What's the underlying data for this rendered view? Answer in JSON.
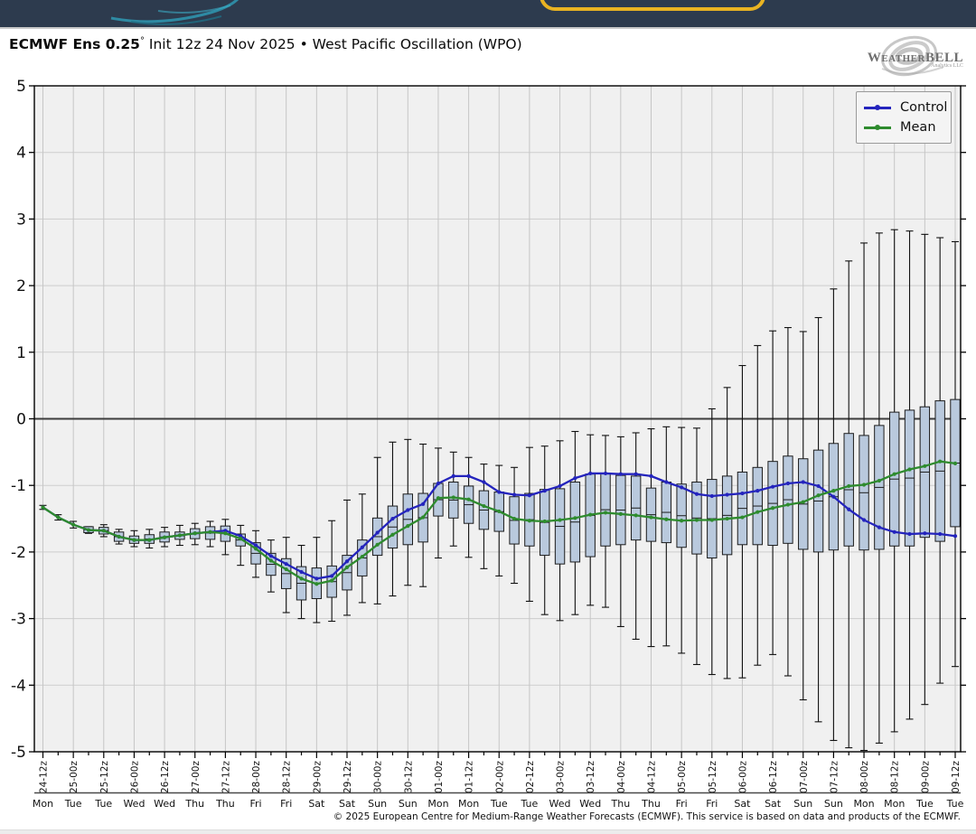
{
  "header": {
    "title_bold": "ECMWF Ens 0.25",
    "title_degree": "°",
    "title_rest": " Init 12z 24 Nov 2025 • West Pacific Oscillation (WPO)",
    "logo_text": "WeatherBELL",
    "logo_sub": "Analytics LLC"
  },
  "legend": {
    "control_label": "Control",
    "mean_label": "Mean"
  },
  "footer": {
    "copyright": "© 2025 European Centre for Medium-Range Weather Forecasts (ECMWF). This service is based on data and products of the ECMWF."
  },
  "colors": {
    "control": "#2424bd",
    "mean": "#2e8b2e",
    "box_fill": "#b9c9dd",
    "box_edge": "#1c1c1c",
    "whisker": "#111111",
    "plot_bg": "#f0f0f0",
    "grid": "#cdcdcd",
    "vgrid": "#c6c6c6",
    "zero_line": "#3c3c3c",
    "frame": "#000000",
    "topbar": "#2d3b4e",
    "accent_yellow": "#e9b322"
  },
  "chart_data": {
    "type": "box-whisker-timeseries",
    "title": "ECMWF Ens 0.25° Init 12z 24 Nov 2025 • West Pacific Oscillation (WPO)",
    "ylabel": "",
    "xlabel": "",
    "ylim": [
      -5,
      5
    ],
    "yticks": [
      5,
      4,
      3,
      2,
      1,
      0,
      -1,
      -2,
      -3,
      -4,
      -5
    ],
    "grid": true,
    "legend_position": "upper right",
    "points_interval_hours": 6,
    "tick_interval_hours": 12,
    "xticklabels": [
      "24-12z",
      "25-00z",
      "25-12z",
      "26-00z",
      "26-12z",
      "27-00z",
      "27-12z",
      "28-00z",
      "28-12z",
      "29-00z",
      "29-12z",
      "30-00z",
      "30-12z",
      "01-00z",
      "01-12z",
      "02-00z",
      "02-12z",
      "03-00z",
      "03-12z",
      "04-00z",
      "04-12z",
      "05-00z",
      "05-12z",
      "06-00z",
      "06-12z",
      "07-00z",
      "07-12z",
      "08-00z",
      "08-12z",
      "09-00z",
      "09-12z"
    ],
    "day_labels": [
      "Mon",
      "Tue",
      "Tue",
      "Wed",
      "Wed",
      "Thu",
      "Thu",
      "Fri",
      "Fri",
      "Sat",
      "Sat",
      "Sun",
      "Sun",
      "Mon",
      "Mon",
      "Tue",
      "Tue",
      "Wed",
      "Wed",
      "Thu",
      "Thu",
      "Fri",
      "Fri",
      "Sat",
      "Sat",
      "Sun",
      "Sun",
      "Mon",
      "Mon",
      "Tue",
      "Tue"
    ],
    "series": [
      {
        "name": "Control",
        "values": [
          -1.33,
          -1.48,
          -1.59,
          -1.67,
          -1.68,
          -1.77,
          -1.82,
          -1.82,
          -1.78,
          -1.75,
          -1.72,
          -1.7,
          -1.68,
          -1.76,
          -1.9,
          -2.06,
          -2.18,
          -2.3,
          -2.4,
          -2.36,
          -2.14,
          -1.93,
          -1.71,
          -1.5,
          -1.37,
          -1.28,
          -0.97,
          -0.86,
          -0.86,
          -0.95,
          -1.1,
          -1.14,
          -1.15,
          -1.08,
          -1.01,
          -0.89,
          -0.82,
          -0.82,
          -0.83,
          -0.83,
          -0.86,
          -0.95,
          -1.03,
          -1.13,
          -1.16,
          -1.14,
          -1.12,
          -1.08,
          -1.02,
          -0.97,
          -0.95,
          -1.01,
          -1.17,
          -1.36,
          -1.52,
          -1.63,
          -1.7,
          -1.73,
          -1.72,
          -1.73,
          -1.76
        ]
      },
      {
        "name": "Mean",
        "values": [
          -1.33,
          -1.48,
          -1.59,
          -1.67,
          -1.68,
          -1.77,
          -1.82,
          -1.82,
          -1.78,
          -1.75,
          -1.72,
          -1.7,
          -1.72,
          -1.8,
          -1.95,
          -2.13,
          -2.26,
          -2.4,
          -2.48,
          -2.43,
          -2.23,
          -2.07,
          -1.89,
          -1.74,
          -1.61,
          -1.48,
          -1.19,
          -1.18,
          -1.21,
          -1.31,
          -1.39,
          -1.5,
          -1.53,
          -1.54,
          -1.52,
          -1.49,
          -1.44,
          -1.41,
          -1.43,
          -1.45,
          -1.48,
          -1.51,
          -1.53,
          -1.52,
          -1.52,
          -1.5,
          -1.48,
          -1.4,
          -1.34,
          -1.29,
          -1.25,
          -1.15,
          -1.08,
          -1.01,
          -0.99,
          -0.93,
          -0.83,
          -0.76,
          -0.71,
          -0.64,
          -0.67
        ]
      }
    ],
    "box_top": [
      null,
      null,
      null,
      -1.62,
      -1.63,
      -1.7,
      -1.76,
      -1.74,
      -1.7,
      -1.7,
      -1.65,
      -1.62,
      -1.61,
      -1.73,
      -1.86,
      -2.02,
      -2.1,
      -2.22,
      -2.24,
      -2.21,
      -2.05,
      -1.82,
      -1.49,
      -1.31,
      -1.13,
      -1.12,
      -0.97,
      -0.95,
      -1.01,
      -1.08,
      -1.1,
      -1.17,
      -1.12,
      -1.06,
      -1.05,
      -0.95,
      -0.83,
      -0.82,
      -0.85,
      -0.86,
      -1.04,
      -0.95,
      -0.98,
      -0.95,
      -0.91,
      -0.86,
      -0.8,
      -0.73,
      -0.64,
      -0.56,
      -0.6,
      -0.47,
      -0.37,
      -0.22,
      -0.25,
      -0.1,
      0.1,
      0.13,
      0.18,
      0.27,
      0.29
    ],
    "box_bottom": [
      null,
      null,
      null,
      -1.71,
      -1.73,
      -1.84,
      -1.87,
      -1.87,
      -1.85,
      -1.81,
      -1.8,
      -1.81,
      -1.84,
      -1.91,
      -2.18,
      -2.35,
      -2.55,
      -2.72,
      -2.7,
      -2.68,
      -2.57,
      -2.36,
      -2.05,
      -1.94,
      -1.89,
      -1.85,
      -1.46,
      -1.49,
      -1.57,
      -1.66,
      -1.69,
      -1.88,
      -1.91,
      -2.05,
      -2.18,
      -2.15,
      -2.07,
      -1.91,
      -1.89,
      -1.82,
      -1.84,
      -1.86,
      -1.93,
      -2.03,
      -2.09,
      -2.04,
      -1.89,
      -1.89,
      -1.9,
      -1.87,
      -1.96,
      -2.0,
      -1.97,
      -1.91,
      -1.97,
      -1.96,
      -1.91,
      -1.91,
      -1.78,
      -1.84,
      -1.62
    ],
    "whisker_top": [
      -1.3,
      -1.44,
      -1.54,
      -1.62,
      -1.59,
      -1.66,
      -1.68,
      -1.66,
      -1.63,
      -1.6,
      -1.57,
      -1.54,
      -1.51,
      -1.6,
      -1.68,
      -1.82,
      -1.78,
      -1.9,
      -1.78,
      -1.53,
      -1.22,
      -1.13,
      -0.58,
      -0.35,
      -0.31,
      -0.38,
      -0.44,
      -0.5,
      -0.58,
      -0.68,
      -0.7,
      -0.73,
      -0.43,
      -0.41,
      -0.33,
      -0.19,
      -0.24,
      -0.25,
      -0.27,
      -0.21,
      -0.15,
      -0.12,
      -0.13,
      -0.14,
      0.15,
      0.47,
      0.8,
      1.1,
      1.32,
      1.37,
      1.31,
      1.52,
      1.95,
      2.37,
      2.64,
      2.79,
      2.84,
      2.82,
      2.77,
      2.72,
      2.66
    ],
    "whisker_bottom": [
      -1.36,
      -1.52,
      -1.64,
      -1.72,
      -1.77,
      -1.88,
      -1.92,
      -1.94,
      -1.92,
      -1.9,
      -1.89,
      -1.92,
      -2.04,
      -2.2,
      -2.38,
      -2.6,
      -2.91,
      -3.0,
      -3.06,
      -3.04,
      -2.95,
      -2.76,
      -2.78,
      -2.66,
      -2.5,
      -2.52,
      -2.09,
      -1.91,
      -2.08,
      -2.25,
      -2.36,
      -2.47,
      -2.74,
      -2.94,
      -3.03,
      -2.94,
      -2.8,
      -2.83,
      -3.12,
      -3.31,
      -3.42,
      -3.41,
      -3.52,
      -3.69,
      -3.84,
      -3.9,
      -3.89,
      -3.7,
      -3.54,
      -3.86,
      -4.22,
      -4.55,
      -4.83,
      -4.94,
      -4.98,
      -4.87,
      -4.7,
      -4.51,
      -4.29,
      -3.97,
      -3.72
    ]
  }
}
